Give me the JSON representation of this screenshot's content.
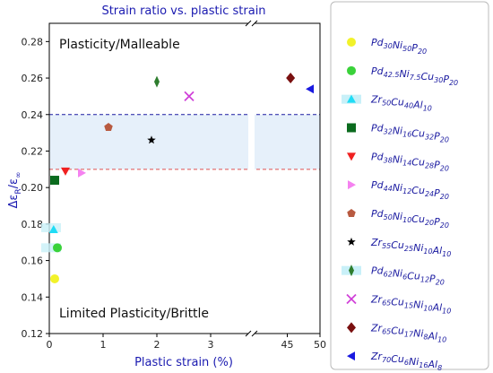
{
  "chart_data": {
    "type": "scatter",
    "title": "Strain ratio vs. plastic strain",
    "xlabel": "Plastic strain (%)",
    "ylabel": "Δε_R/ε_∞",
    "ylim": [
      0.12,
      0.29
    ],
    "y_ticks": [
      "0.12",
      "0.14",
      "0.16",
      "0.18",
      "0.20",
      "0.22",
      "0.24",
      "0.26",
      "0.28"
    ],
    "x_axis_segments": [
      {
        "xlim": [
          0,
          3.7
        ],
        "ticks": [
          "0",
          "1",
          "2",
          "3"
        ]
      },
      {
        "xlim": [
          40,
          50
        ],
        "ticks": [
          "45",
          "50"
        ]
      }
    ],
    "annotations": [
      "Plasticity/Malleable",
      "Limited Plasticity/Brittle"
    ],
    "reference_lines": [
      {
        "y": 0.24,
        "color": "#1a1aa0",
        "style": "dashed"
      },
      {
        "y": 0.21,
        "color": "#e05050",
        "style": "dashed"
      }
    ],
    "shaded_band": {
      "y": [
        0.21,
        0.24
      ],
      "color": "#e6f0fa"
    },
    "grid": false,
    "legend_position": "right",
    "series": [
      {
        "name": "Pd30Ni50P20",
        "parts": [
          [
            "Pd",
            "30"
          ],
          [
            "Ni",
            "50"
          ],
          [
            "P",
            "20"
          ]
        ],
        "marker": "circle",
        "color": "#f2f22a",
        "x": 0.1,
        "y": 0.15
      },
      {
        "name": "Pd42.5Ni7.5Cu30P20",
        "parts": [
          [
            "Pd",
            "42.5"
          ],
          [
            "Ni",
            "7.5"
          ],
          [
            "Cu",
            "30"
          ],
          [
            "P",
            "20"
          ]
        ],
        "marker": "circle",
        "color": "#3ad23a",
        "x": 0.15,
        "y": 0.167
      },
      {
        "name": "Zr50Cu40Al10",
        "parts": [
          [
            "Zr",
            "50"
          ],
          [
            "Cu",
            "40"
          ],
          [
            "Al",
            "10"
          ]
        ],
        "marker": "triangle-up",
        "color": "#1fdcf5",
        "x": 0.08,
        "y": 0.177
      },
      {
        "name": "Pd32Ni16Cu32P20",
        "parts": [
          [
            "Pd",
            "32"
          ],
          [
            "Ni",
            "16"
          ],
          [
            "Cu",
            "32"
          ],
          [
            "P",
            "20"
          ]
        ],
        "marker": "square",
        "color": "#0b6b1e",
        "x": 0.1,
        "y": 0.204
      },
      {
        "name": "Pd38Ni14Cu28P20",
        "parts": [
          [
            "Pd",
            "38"
          ],
          [
            "Ni",
            "14"
          ],
          [
            "Cu",
            "28"
          ],
          [
            "P",
            "20"
          ]
        ],
        "marker": "triangle-down",
        "color": "#f02020",
        "x": 0.3,
        "y": 0.209
      },
      {
        "name": "Pd44Ni12Cu24P20",
        "parts": [
          [
            "Pd",
            "44"
          ],
          [
            "Ni",
            "12"
          ],
          [
            "Cu",
            "24"
          ],
          [
            "P",
            "20"
          ]
        ],
        "marker": "triangle-right",
        "color": "#f582f0",
        "x": 0.6,
        "y": 0.208
      },
      {
        "name": "Pd50Ni10Cu20P20",
        "parts": [
          [
            "Pd",
            "50"
          ],
          [
            "Ni",
            "10"
          ],
          [
            "Cu",
            "20"
          ],
          [
            "P",
            "20"
          ]
        ],
        "marker": "pentagon",
        "color": "#b85a40",
        "x": 1.1,
        "y": 0.233
      },
      {
        "name": "Zr55Cu25Ni10Al10",
        "parts": [
          [
            "Zr",
            "55"
          ],
          [
            "Cu",
            "25"
          ],
          [
            "Ni",
            "10"
          ],
          [
            "Al",
            "10"
          ]
        ],
        "marker": "star",
        "color": "#000000",
        "x": 1.9,
        "y": 0.226
      },
      {
        "name": "Pd62Ni6Cu12P20",
        "parts": [
          [
            "Pd",
            "62"
          ],
          [
            "Ni",
            "6"
          ],
          [
            "Cu",
            "12"
          ],
          [
            "P",
            "20"
          ]
        ],
        "marker": "thin-diamond",
        "color": "#2e7d2e",
        "x": 2.0,
        "y": 0.258
      },
      {
        "name": "Zr65Cu15Ni10Al10",
        "parts": [
          [
            "Zr",
            "65"
          ],
          [
            "Cu",
            "15"
          ],
          [
            "Ni",
            "10"
          ],
          [
            "Al",
            "10"
          ]
        ],
        "marker": "x",
        "color": "#d040d8",
        "x": 2.6,
        "y": 0.25
      },
      {
        "name": "Zr65Cu17Ni8Al10",
        "parts": [
          [
            "Zr",
            "65"
          ],
          [
            "Cu",
            "17"
          ],
          [
            "Ni",
            "8"
          ],
          [
            "Al",
            "10"
          ]
        ],
        "marker": "diamond",
        "color": "#7a1010",
        "x": 45.5,
        "y": 0.26
      },
      {
        "name": "Zr70Cu6Ni16Al8",
        "parts": [
          [
            "Zr",
            "70"
          ],
          [
            "Cu",
            "6"
          ],
          [
            "Ni",
            "16"
          ],
          [
            "Al",
            "8"
          ]
        ],
        "marker": "triangle-left",
        "color": "#1a1ae0",
        "x": 48.5,
        "y": 0.254
      }
    ]
  }
}
